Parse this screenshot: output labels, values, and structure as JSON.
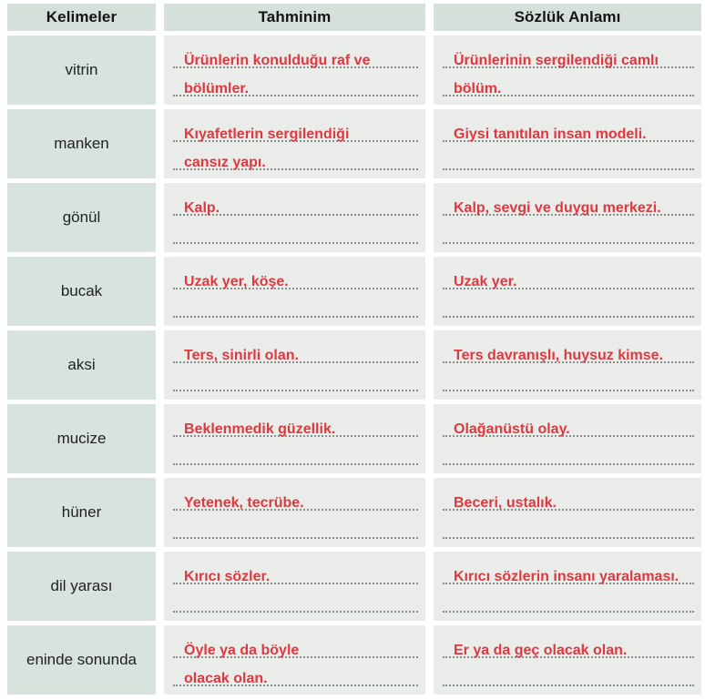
{
  "table": {
    "headers": [
      {
        "label": "Kelimeler"
      },
      {
        "label": "Tahminim"
      },
      {
        "label": "Sözlük Anlamı"
      }
    ],
    "rows": [
      {
        "word": "vitrin",
        "guess": [
          "Ürünlerin konulduğu raf ve",
          "bölümler."
        ],
        "dict": [
          "Ürünlerinin sergilendiği camlı",
          "bölüm."
        ]
      },
      {
        "word": "manken",
        "guess": [
          "Kıyafetlerin sergilendiği",
          "cansız yapı."
        ],
        "dict": [
          "Giysi tanıtılan insan modeli.",
          ""
        ]
      },
      {
        "word": "gönül",
        "guess": [
          "Kalp.",
          ""
        ],
        "dict": [
          "Kalp, sevgi ve duygu merkezi.",
          ""
        ]
      },
      {
        "word": "bucak",
        "guess": [
          "Uzak yer, köşe.",
          ""
        ],
        "dict": [
          "Uzak yer.",
          ""
        ]
      },
      {
        "word": "aksi",
        "guess": [
          "Ters, sinirli olan.",
          ""
        ],
        "dict": [
          "Ters davranışlı, huysuz kimse.",
          ""
        ]
      },
      {
        "word": "mucize",
        "guess": [
          "Beklenmedik güzellik.",
          ""
        ],
        "dict": [
          "Olağanüstü olay.",
          ""
        ]
      },
      {
        "word": "hüner",
        "guess": [
          "Yetenek, tecrübe.",
          ""
        ],
        "dict": [
          "Beceri, ustalık.",
          ""
        ]
      },
      {
        "word": "dil yarası",
        "guess": [
          "Kırıcı sözler.",
          ""
        ],
        "dict": [
          "Kırıcı sözlerin insanı yaralaması.",
          ""
        ]
      },
      {
        "word": "eninde sonunda",
        "guess": [
          "Öyle ya da böyle",
          "olacak olan."
        ],
        "dict": [
          "Er ya da geç olacak olan.",
          ""
        ]
      }
    ]
  },
  "colors": {
    "header_bg": "#d6e0da",
    "word_bg": "#d9e3dd",
    "answer_bg": "#e9ece9",
    "answer_text": "#de3840",
    "dotted_line": "#888f8c",
    "header_text": "#141414"
  }
}
